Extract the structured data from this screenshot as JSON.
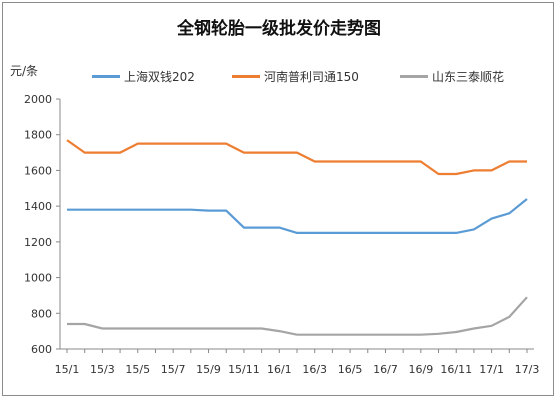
{
  "chart_data": {
    "type": "line",
    "title": "全钢轮胎一级批发价走势图",
    "ylabel": "元/条",
    "xlabel": "",
    "ylim": [
      600,
      2000
    ],
    "yticks": [
      600,
      800,
      1000,
      1200,
      1400,
      1600,
      1800,
      2000
    ],
    "grid": false,
    "legend_position": "top",
    "x": [
      "15/1",
      "15/2",
      "15/3",
      "15/4",
      "15/5",
      "15/6",
      "15/7",
      "15/8",
      "15/9",
      "15/10",
      "15/11",
      "15/12",
      "16/1",
      "16/2",
      "16/3",
      "16/4",
      "16/5",
      "16/6",
      "16/7",
      "16/8",
      "16/9",
      "16/10",
      "16/11",
      "16/12",
      "17/1",
      "17/2",
      "17/3"
    ],
    "xtick_labels": [
      "15/1",
      "15/3",
      "15/5",
      "15/7",
      "15/9",
      "15/11",
      "16/1",
      "16/3",
      "16/5",
      "16/7",
      "16/9",
      "16/11",
      "17/1",
      "17/3"
    ],
    "series": [
      {
        "name": "上海双钱202",
        "color": "#5b9bd5",
        "values": [
          1380,
          1380,
          1380,
          1380,
          1380,
          1380,
          1380,
          1380,
          1375,
          1375,
          1280,
          1280,
          1280,
          1250,
          1250,
          1250,
          1250,
          1250,
          1250,
          1250,
          1250,
          1250,
          1250,
          1270,
          1330,
          1360,
          1440
        ]
      },
      {
        "name": "河南普利司通150",
        "color": "#ed7d31",
        "values": [
          1770,
          1700,
          1700,
          1700,
          1750,
          1750,
          1750,
          1750,
          1750,
          1750,
          1700,
          1700,
          1700,
          1700,
          1650,
          1650,
          1650,
          1650,
          1650,
          1650,
          1650,
          1580,
          1580,
          1600,
          1600,
          1650,
          1650
        ]
      },
      {
        "name": "山东三泰顺花",
        "color": "#a5a5a5",
        "values": [
          740,
          740,
          715,
          715,
          715,
          715,
          715,
          715,
          715,
          715,
          715,
          715,
          700,
          680,
          680,
          680,
          680,
          680,
          680,
          680,
          680,
          685,
          695,
          715,
          730,
          780,
          890
        ]
      }
    ]
  }
}
